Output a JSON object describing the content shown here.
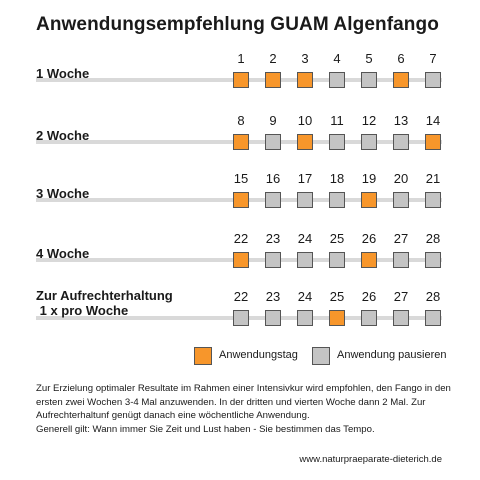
{
  "title": "Anwendungsempfehlung GUAM Algenfango",
  "rows": [
    {
      "label": "1 Woche",
      "days": [
        {
          "n": "1",
          "status": "active"
        },
        {
          "n": "2",
          "status": "active"
        },
        {
          "n": "3",
          "status": "active"
        },
        {
          "n": "4",
          "status": "pause"
        },
        {
          "n": "5",
          "status": "pause"
        },
        {
          "n": "6",
          "status": "active"
        },
        {
          "n": "7",
          "status": "pause"
        }
      ]
    },
    {
      "label": "2 Woche",
      "days": [
        {
          "n": "8",
          "status": "active"
        },
        {
          "n": "9",
          "status": "pause"
        },
        {
          "n": "10",
          "status": "active"
        },
        {
          "n": "11",
          "status": "pause"
        },
        {
          "n": "12",
          "status": "pause"
        },
        {
          "n": "13",
          "status": "pause"
        },
        {
          "n": "14",
          "status": "active"
        }
      ]
    },
    {
      "label": "3 Woche",
      "days": [
        {
          "n": "15",
          "status": "active"
        },
        {
          "n": "16",
          "status": "pause"
        },
        {
          "n": "17",
          "status": "pause"
        },
        {
          "n": "18",
          "status": "pause"
        },
        {
          "n": "19",
          "status": "active"
        },
        {
          "n": "20",
          "status": "pause"
        },
        {
          "n": "21",
          "status": "pause"
        }
      ]
    },
    {
      "label": "4 Woche",
      "days": [
        {
          "n": "22",
          "status": "active"
        },
        {
          "n": "23",
          "status": "pause"
        },
        {
          "n": "24",
          "status": "pause"
        },
        {
          "n": "25",
          "status": "pause"
        },
        {
          "n": "26",
          "status": "active"
        },
        {
          "n": "27",
          "status": "pause"
        },
        {
          "n": "28",
          "status": "pause"
        }
      ]
    },
    {
      "label": "Zur Aufrechterhaltung\n 1 x pro Woche",
      "days": [
        {
          "n": "22",
          "status": "pause"
        },
        {
          "n": "23",
          "status": "pause"
        },
        {
          "n": "24",
          "status": "pause"
        },
        {
          "n": "25",
          "status": "active"
        },
        {
          "n": "26",
          "status": "pause"
        },
        {
          "n": "27",
          "status": "pause"
        },
        {
          "n": "28",
          "status": "pause"
        }
      ]
    }
  ],
  "legend": {
    "active_label": "Anwendungstag",
    "pause_label": "Anwendung pausieren"
  },
  "colors": {
    "active": "#f7962b",
    "pause": "#c4c4c4",
    "bar": "#d9d9d9"
  },
  "note": {
    "line1": "Zur Erzielung optimaler Resultate im Rahmen einer Intensivkur wird empfohlen, den Fango in den ersten zwei Wochen 3-4 Mal anzuwenden. In der dritten und vierten Woche dann 2 Mal. Zur Aufrechterhaltunf genügt danach eine wöchentliche Anwendung.",
    "line2": "Generell gilt: Wann immer Sie Zeit und Lust haben - Sie bestimmen das Tempo."
  },
  "footer": "www.naturpraeparate-dieterich.de"
}
